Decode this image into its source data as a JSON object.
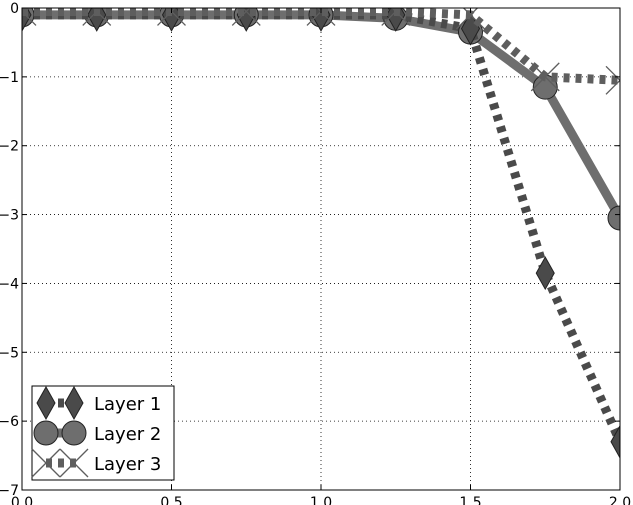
{
  "chart_data": {
    "type": "line",
    "title": "",
    "xlabel": "",
    "ylabel": "",
    "xlim": [
      0.0,
      2.0
    ],
    "ylim": [
      -7,
      0
    ],
    "grid": true,
    "legend_position": "bottom-left",
    "x": [
      0.0,
      0.25,
      0.5,
      0.75,
      1.0,
      1.25,
      1.5,
      1.75,
      2.0
    ],
    "x_tick_labels": [
      "0.0",
      "0.5",
      "1.0",
      "1.5",
      "2.0"
    ],
    "y_tick_labels": [
      "0",
      "−1",
      "−2",
      "−3",
      "−4",
      "−5",
      "−6",
      "−7"
    ],
    "series": [
      {
        "name": "Layer 1",
        "values": [
          -0.1,
          -0.1,
          -0.1,
          -0.1,
          -0.1,
          -0.1,
          -0.3,
          -3.85,
          -6.3
        ],
        "color": "#4a4a4a",
        "line_style": "dotted",
        "marker": "diamond"
      },
      {
        "name": "Layer 2",
        "values": [
          -0.1,
          -0.1,
          -0.1,
          -0.1,
          -0.1,
          -0.15,
          -0.35,
          -1.15,
          -3.05
        ],
        "color": "#6e6e6e",
        "line_style": "solid",
        "marker": "circle"
      },
      {
        "name": "Layer 3",
        "values": [
          -0.05,
          -0.05,
          -0.05,
          -0.05,
          -0.05,
          -0.05,
          -0.1,
          -1.0,
          -1.05
        ],
        "color": "#5e5e5e",
        "line_style": "dotted",
        "marker": "x"
      }
    ]
  }
}
